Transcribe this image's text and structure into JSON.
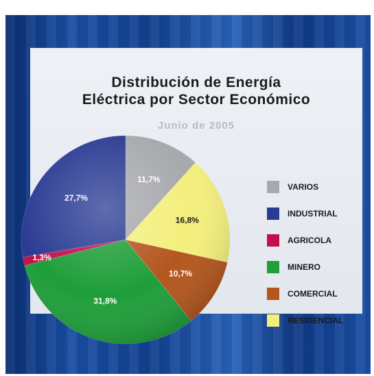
{
  "chart_data": {
    "type": "pie",
    "title_line1": "Distribución de Energía",
    "title_line2": "Eléctrica por Sector Económico",
    "subtitle": "Junio de 2005",
    "slices": [
      {
        "name": "VARIOS",
        "value": 11.7,
        "label": "11,7%",
        "color": "#a7a9ad",
        "label_color": "#ffffff"
      },
      {
        "name": "RESIDENCIAL",
        "value": 16.8,
        "label": "16,8%",
        "color": "#f4ef7c",
        "label_color": "#1a1a1a"
      },
      {
        "name": "COMERCIAL",
        "value": 10.7,
        "label": "10,7%",
        "color": "#b4561e",
        "label_color": "#ffffff"
      },
      {
        "name": "MINERO",
        "value": 31.8,
        "label": "31,8%",
        "color": "#1f9e3a",
        "label_color": "#ffffff"
      },
      {
        "name": "AGRICOLA",
        "value": 1.3,
        "label": "1,3%",
        "color": "#c4104a",
        "label_color": "#ffffff"
      },
      {
        "name": "INDUSTRIAL",
        "value": 27.7,
        "label": "27,7%",
        "color": "#2a3b93",
        "label_color": "#ffffff"
      }
    ],
    "legend": [
      {
        "label": "VARIOS",
        "color": "#a7a9ad"
      },
      {
        "label": "INDUSTRIAL",
        "color": "#2a3b93"
      },
      {
        "label": "AGRICOLA",
        "color": "#c4104a"
      },
      {
        "label": "MINERO",
        "color": "#1f9e3a"
      },
      {
        "label": "COMERCIAL",
        "color": "#b4561e"
      },
      {
        "label": "RESIDENCIAL",
        "color": "#f4ef7c"
      }
    ],
    "legend_position": "right"
  }
}
